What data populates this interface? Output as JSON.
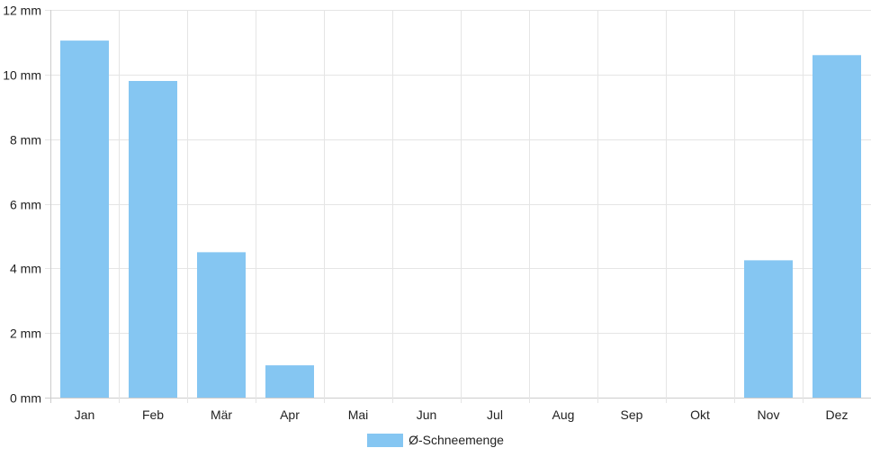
{
  "chart_data": {
    "type": "bar",
    "categories": [
      "Jan",
      "Feb",
      "Mär",
      "Apr",
      "Mai",
      "Jun",
      "Jul",
      "Aug",
      "Sep",
      "Okt",
      "Nov",
      "Dez"
    ],
    "series": [
      {
        "name": "Ø-Schneemenge",
        "values": [
          11.05,
          9.8,
          4.5,
          1.0,
          0,
          0,
          0,
          0,
          0,
          0,
          4.25,
          10.6
        ],
        "color": "#85c6f2"
      }
    ],
    "ylim": [
      0,
      12
    ],
    "yticks": [
      0,
      2,
      4,
      6,
      8,
      10,
      12
    ],
    "ytick_labels": [
      "0 mm",
      "2 mm",
      "4 mm",
      "6 mm",
      "8 mm",
      "10 mm",
      "12 mm"
    ],
    "grid": true,
    "legend_position": "bottom",
    "grid_color": "#e5e5e5",
    "axis_color": "#cccccc"
  }
}
